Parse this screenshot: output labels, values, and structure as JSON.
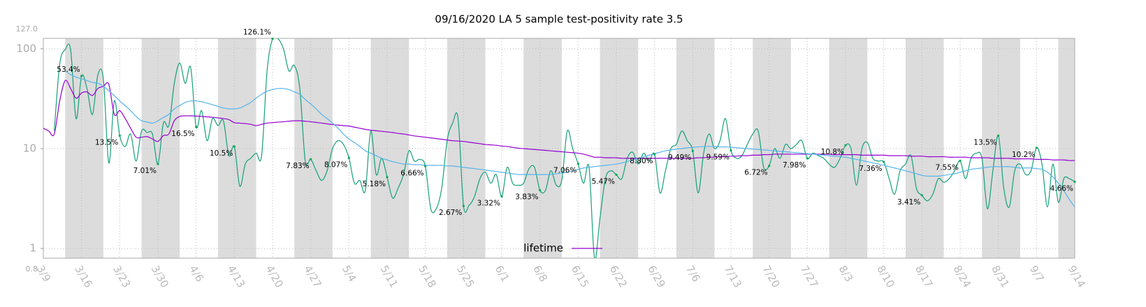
{
  "chart_data": {
    "type": "line",
    "title": "09/16/2020 LA 5 sample test-positivity rate 3.5",
    "x": [
      "3/9",
      null,
      null,
      null,
      null,
      null,
      null,
      "3/16",
      null,
      null,
      null,
      null,
      null,
      null,
      "3/23",
      null,
      null,
      null,
      null,
      null,
      null,
      "3/30",
      null,
      null,
      null,
      null,
      null,
      null,
      "4/6",
      null,
      null,
      null,
      null,
      null,
      null,
      "4/13",
      null,
      null,
      null,
      null,
      null,
      null,
      "4/20",
      null,
      null,
      null,
      null,
      null,
      null,
      "4/27",
      null,
      null,
      null,
      null,
      null,
      null,
      "5/4",
      null,
      null,
      null,
      null,
      null,
      null,
      "5/11",
      null,
      null,
      null,
      null,
      null,
      null,
      "5/18",
      null,
      null,
      null,
      null,
      null,
      null,
      "5/25",
      null,
      null,
      null,
      null,
      null,
      null,
      "6/1",
      null,
      null,
      null,
      null,
      null,
      null,
      "6/8",
      null,
      null,
      null,
      null,
      null,
      null,
      "6/15",
      null,
      null,
      null,
      null,
      null,
      null,
      "6/22",
      null,
      null,
      null,
      null,
      null,
      null,
      "6/29",
      null,
      null,
      null,
      null,
      null,
      null,
      "7/6",
      null,
      null,
      null,
      null,
      null,
      null,
      "7/13",
      null,
      null,
      null,
      null,
      null,
      null,
      "7/20",
      null,
      null,
      null,
      null,
      null,
      null,
      "7/27",
      null,
      null,
      null,
      null,
      null,
      null,
      "8/3",
      null,
      null,
      null,
      null,
      null,
      null,
      "8/10",
      null,
      null,
      null,
      null,
      null,
      null,
      "8/17",
      null,
      null,
      null,
      null,
      null,
      null,
      "8/24",
      null,
      null,
      null,
      null,
      null,
      null,
      "8/31",
      null,
      null,
      null,
      null,
      null,
      null,
      "9/7",
      null,
      null,
      null,
      null,
      null,
      null,
      "9/14"
    ],
    "series": [
      {
        "color": "#15a07a",
        "values": [
          null,
          null,
          15,
          70,
          98,
          98,
          20,
          53.4,
          40,
          22,
          55,
          50,
          7.2,
          30,
          13.5,
          10.5,
          14,
          7.5,
          15,
          14.5,
          14,
          7.01,
          18,
          17,
          45,
          72,
          45,
          65,
          16.5,
          24,
          12,
          20,
          17,
          19,
          8.5,
          10.5,
          4.2,
          7,
          8,
          9,
          8.5,
          60,
          126.1,
          126,
          100,
          60,
          68,
          40,
          7.5,
          7.83,
          6,
          4.8,
          6,
          10,
          12,
          11,
          8.07,
          4.5,
          4.8,
          3.8,
          15,
          5.5,
          8,
          5.18,
          3.2,
          4,
          5.5,
          9.5,
          7.5,
          7.8,
          6.66,
          2.5,
          2.5,
          4,
          12,
          18,
          20,
          2.67,
          2.7,
          3.3,
          5,
          5.8,
          4.5,
          5.5,
          3.32,
          6.5,
          4.5,
          4.3,
          4.5,
          6.3,
          6.5,
          3.83,
          3.8,
          6,
          4.3,
          4.8,
          15,
          10,
          7.06,
          4.5,
          6.5,
          0.8,
          2,
          5,
          6,
          5.47,
          5,
          8,
          9.2,
          7,
          9,
          7.5,
          8.8,
          3.6,
          6,
          10,
          11,
          15,
          12,
          9.49,
          3.6,
          9,
          14,
          10,
          12,
          20,
          9.59,
          8,
          8.5,
          11,
          14,
          15,
          6.5,
          6.72,
          10,
          8,
          11,
          10,
          11,
          12,
          7.98,
          9,
          8.5,
          8,
          7,
          6.5,
          8,
          10.8,
          10,
          4.3,
          10,
          11.5,
          8,
          7.5,
          7.36,
          5,
          3.5,
          6,
          7,
          8.5,
          4,
          3.41,
          3,
          3.5,
          5,
          4.6,
          5,
          6,
          7.55,
          5,
          8,
          9,
          8,
          2.5,
          6,
          13.5,
          4,
          2.6,
          6,
          7,
          5.5,
          6,
          10.2,
          7,
          2.6,
          7,
          2.9,
          5,
          5,
          4.66
        ]
      },
      {
        "name": "lifetime",
        "color": "#9400d3",
        "values": [
          16,
          15,
          14,
          30,
          48,
          40,
          32,
          36,
          37,
          34,
          40,
          42,
          44,
          22,
          24,
          20,
          16,
          13,
          13,
          13.2,
          12.5,
          11.8,
          13.5,
          14,
          19,
          21,
          21.3,
          21.3,
          21.2,
          21,
          20.8,
          20.6,
          20.3,
          20,
          19.5,
          18.2,
          18,
          17.8,
          17.5,
          17,
          17.5,
          18,
          18.2,
          18.4,
          18.6,
          18.8,
          19,
          19,
          18.8,
          18.6,
          18.3,
          18,
          17.7,
          17.4,
          17.2,
          17,
          16.8,
          16.4,
          16,
          15.6,
          15.3,
          15.1,
          14.9,
          14.7,
          14.5,
          14.2,
          14,
          13.7,
          13.4,
          13.2,
          13,
          12.8,
          12.6,
          12.4,
          12.2,
          12,
          11.9,
          11.8,
          11.6,
          11.4,
          11.2,
          11,
          10.9,
          10.8,
          10.6,
          10.5,
          10.3,
          10.1,
          10,
          9.9,
          9.8,
          9.7,
          9.6,
          9.5,
          9.4,
          9.3,
          9.2,
          9.1,
          9,
          8.8,
          8.5,
          8.2,
          8.2,
          8.1,
          8.1,
          8.1,
          8,
          8,
          8,
          8,
          8,
          8,
          8,
          8,
          8,
          8,
          8,
          8,
          8,
          8,
          8.1,
          8.1,
          8.2,
          8.2,
          8.3,
          8.3,
          8.4,
          8.4,
          8.5,
          8.5,
          8.6,
          8.6,
          8.7,
          8.7,
          8.8,
          8.8,
          8.8,
          8.8,
          8.8,
          8.8,
          8.8,
          8.8,
          8.8,
          8.8,
          8.8,
          8.7,
          8.7,
          8.7,
          8.7,
          8.7,
          8.6,
          8.6,
          8.6,
          8.6,
          8.6,
          8.5,
          8.5,
          8.5,
          8.5,
          8.4,
          8.4,
          8.4,
          8.3,
          8.3,
          8.3,
          8.3,
          8.2,
          8.2,
          8.2,
          8.2,
          8.1,
          8.1,
          8.1,
          8.1,
          8,
          8,
          8,
          8,
          7.9,
          7.9,
          7.9,
          7.9,
          7.8,
          7.8,
          7.8,
          7.7,
          7.7,
          7.7,
          7.6,
          7.6
        ]
      },
      {
        "color": "#56b4e9",
        "values": [
          null,
          null,
          null,
          null,
          60,
          55,
          52,
          50,
          48,
          46,
          45,
          42,
          38,
          34,
          30,
          27,
          24,
          21,
          19,
          18.5,
          18,
          19,
          20.5,
          22,
          25,
          27,
          29,
          30,
          30,
          29.5,
          28.5,
          27.5,
          26.5,
          25.5,
          25,
          25,
          25.5,
          27,
          29,
          32,
          35,
          37.5,
          39,
          40,
          40,
          39,
          37,
          35,
          31,
          28,
          25,
          22,
          20,
          18,
          16,
          14,
          12.5,
          11.5,
          10.5,
          9.5,
          9,
          8.5,
          8,
          7.7,
          7.4,
          7.2,
          7,
          7,
          6.9,
          6.9,
          6.8,
          6.8,
          6.8,
          6.8,
          6.7,
          6.7,
          6.6,
          6.5,
          6.4,
          6.3,
          6.2,
          6.1,
          6,
          5.9,
          5.8,
          5.7,
          5.6,
          5.5,
          5.5,
          5.5,
          5.5,
          5.5,
          5.5,
          5.5,
          5.6,
          5.7,
          5.8,
          6,
          6.2,
          6.4,
          6.5,
          6.6,
          6.7,
          6.8,
          6.9,
          7,
          7.2,
          7.4,
          7.7,
          8,
          8.3,
          8.6,
          8.9,
          9.2,
          9.5,
          9.7,
          9.9,
          10,
          10.2,
          10.3,
          10.4,
          10.5,
          10.5,
          10.5,
          10.4,
          10.4,
          10.3,
          10.2,
          10.1,
          10,
          9.9,
          9.8,
          9.7,
          9.6,
          9.5,
          9.4,
          9.3,
          9.2,
          9.1,
          9,
          8.9,
          8.8,
          8.7,
          8.6,
          8.5,
          8.4,
          8.3,
          8.2,
          8,
          7.8,
          7.6,
          7.4,
          7.2,
          7,
          6.8,
          6.6,
          6.4,
          6.2,
          6,
          5.8,
          5.6,
          5.4,
          5.3,
          5.3,
          5.3,
          5.4,
          5.5,
          5.6,
          5.8,
          6,
          6.2,
          6.3,
          6.4,
          6.5,
          6.6,
          6.6,
          6.6,
          6.6,
          6.5,
          6.4,
          6.4,
          6.4,
          6.3,
          6.2,
          5.8,
          5.2,
          4.5,
          3.8,
          3.1,
          2.6
        ]
      }
    ],
    "annotations": [
      {
        "x": "3/16",
        "label": "53.4%"
      },
      {
        "x": "3/23",
        "label": "13.5%"
      },
      {
        "x": "3/30",
        "label": "7.01%"
      },
      {
        "x": "4/6",
        "label": "16.5%"
      },
      {
        "x": "4/13",
        "label": "10.5%"
      },
      {
        "x": "4/20",
        "label": "126.1%"
      },
      {
        "x": "4/27",
        "label": "7.83%"
      },
      {
        "x": "5/4",
        "label": "8.07%"
      },
      {
        "x": "5/11",
        "label": "5.18%"
      },
      {
        "x": "5/18",
        "label": "6.66%"
      },
      {
        "x": "5/25",
        "label": "2.67%"
      },
      {
        "x": "6/1",
        "label": "3.32%"
      },
      {
        "x": "6/8",
        "label": "3.83%"
      },
      {
        "x": "6/15",
        "label": "7.06%"
      },
      {
        "x": "6/22",
        "label": "5.47%"
      },
      {
        "x": "6/29",
        "label": "8.80%"
      },
      {
        "x": "7/6",
        "label": "9.49%"
      },
      {
        "x": "7/13",
        "label": "9.59%"
      },
      {
        "x": "7/20",
        "label": "6.72%"
      },
      {
        "x": "7/27",
        "label": "7.98%"
      },
      {
        "x": "8/3",
        "label": "10.8%"
      },
      {
        "x": "8/10",
        "label": "7.36%"
      },
      {
        "x": "8/17",
        "label": "3.41%"
      },
      {
        "x": "8/24",
        "label": "7.55%"
      },
      {
        "x": "8/31",
        "label": "13.5%"
      },
      {
        "x": "9/7",
        "label": "10.2%"
      },
      {
        "x": "9/14",
        "label": "4.66%"
      }
    ],
    "ylim": [
      0.8,
      127
    ],
    "ylim_labels": [
      "0.8",
      "127.0"
    ],
    "yticks": [
      1,
      10,
      100
    ],
    "yscale": "log",
    "grid": true,
    "legend": "bottom"
  }
}
